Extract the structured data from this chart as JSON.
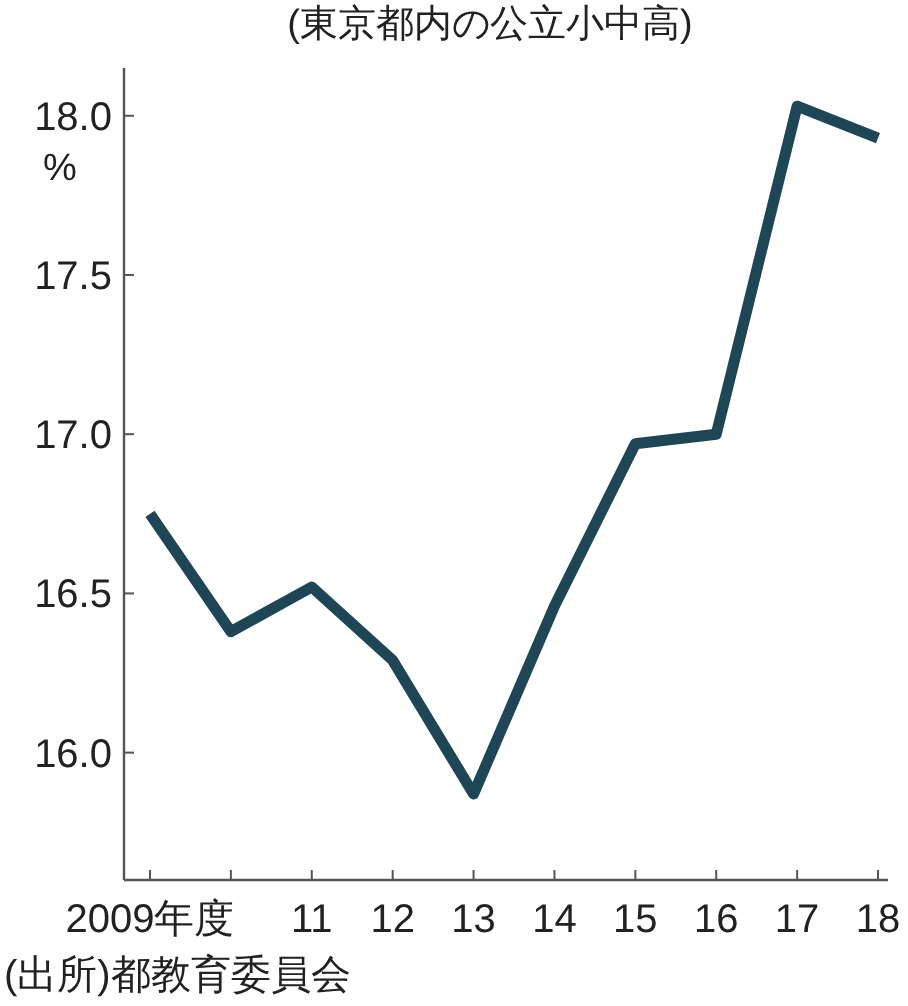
{
  "chart_data": {
    "type": "line",
    "subtitle": "(東京都内の公立小中高)",
    "ylabel": "%",
    "categories": [
      "2009年度",
      null,
      "11",
      "12",
      "13",
      "14",
      "15",
      "16",
      "17",
      "18"
    ],
    "series": [
      {
        "color": "#1e4656",
        "values": [
          16.75,
          16.38,
          16.52,
          16.29,
          15.87,
          16.46,
          16.97,
          17.0,
          18.03,
          17.93
        ]
      }
    ],
    "ylim": [
      15.6,
      18.15
    ],
    "yticks": [
      {
        "value": 16,
        "label": "16.0"
      },
      {
        "value": 16.5,
        "label": "16.5"
      },
      {
        "value": 17,
        "label": "17.0"
      },
      {
        "value": 17.5,
        "label": "17.5"
      },
      {
        "value": 18,
        "label": "18.0"
      }
    ],
    "annotations": [
      "(出所)都教育委員会"
    ]
  }
}
